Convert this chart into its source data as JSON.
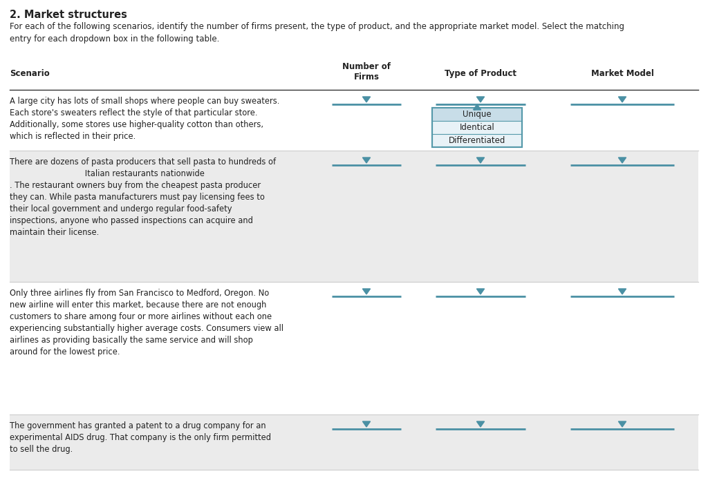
{
  "title": "2. Market structures",
  "intro_line1": "For each of the following scenarios, identify the number of firms present, the type of product, and the appropriate market model. Select the matching",
  "intro_line2": "entry for each dropdown box in the following table.",
  "scenario_texts": [
    [
      "A large city has lots of small shops where people can buy sweaters.",
      "Each store's sweaters reflect the style of that particular store.",
      "Additionally, some stores use higher-quality cotton than others,",
      "which is reflected in their price."
    ],
    [
      "There are dozens of pasta producers that sell pasta to hundreds of",
      "                              Italian restaurants nationwide",
      ". The restaurant owners buy from the cheapest pasta producer",
      "they can. While pasta manufacturers must pay licensing fees to",
      "their local government and undergo regular food-safety",
      "inspections, anyone who passed inspections can acquire and",
      "maintain their license."
    ],
    [
      "Only three airlines fly from San Francisco to Medford, Oregon. No",
      "new airline will enter this market, because there are not enough",
      "customers to share among four or more airlines without each one",
      "experiencing substantially higher average costs. Consumers view all",
      "airlines as providing basically the same service and will shop",
      "around for the lowest price."
    ],
    [
      "The government has granted a patent to a drug company for an",
      "experimental AIDS drug. That company is the only firm permitted",
      "to sell the drug."
    ]
  ],
  "row_bgs": [
    "#ffffff",
    "#ebebeb",
    "#ffffff",
    "#ebebeb"
  ],
  "dropdown_color": "#4a90a4",
  "popup_items": [
    "Unique",
    "Identical",
    "Differentiated"
  ],
  "popup_bg_top": "#c8dde8",
  "popup_bg_other": "#e8f2f7",
  "popup_border": "#5599aa",
  "background": "#ffffff",
  "text_color": "#222222",
  "header_line_color": "#333333"
}
